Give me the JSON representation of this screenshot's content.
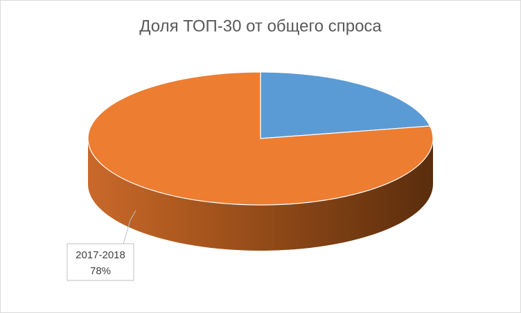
{
  "chart_data": {
    "type": "pie3d",
    "title": "Доля ТОП-30 от общего спроса",
    "categories": [
      null,
      "2017-2018"
    ],
    "values": [
      22,
      78
    ],
    "value_labels": [
      null,
      "78%"
    ],
    "colors": [
      "#5b9bd5",
      "#ed7d31"
    ]
  }
}
